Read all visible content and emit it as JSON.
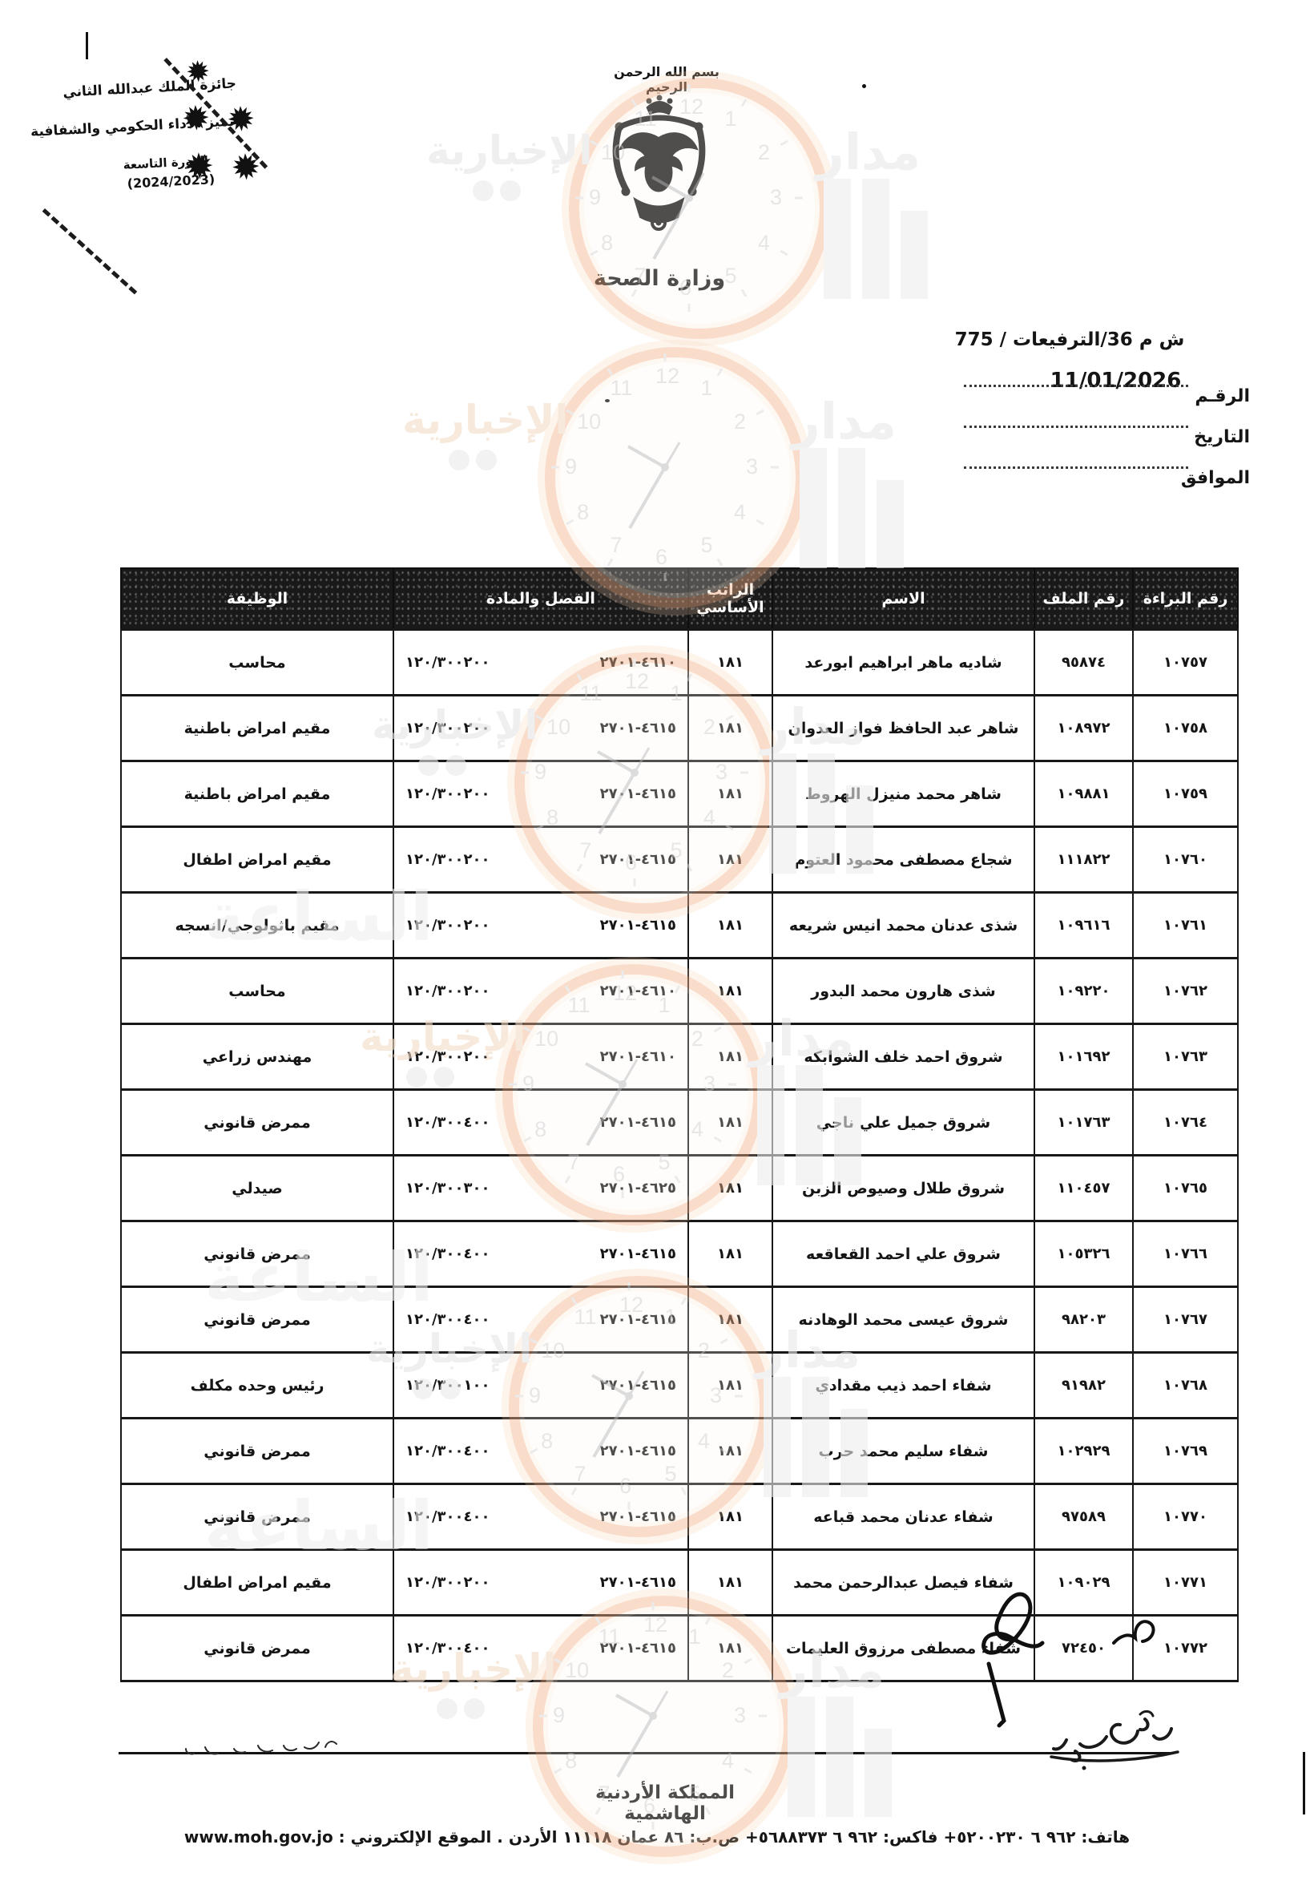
{
  "stamp": {
    "line1": "جائزة الملك عبدالله الثاني",
    "line2": "تميز الأداء الحكومي والشفافية",
    "line3": "الدورة التاسعة",
    "line4": "(2024/2023)",
    "star_glyph": "✹"
  },
  "letterhead": {
    "basmala": "بسم الله الرحمن الرحيم",
    "ministry": "وزارة الصحة"
  },
  "reference": {
    "ref_line": "ش م 36/الترفيعات / 775",
    "number_label": "الرقـم",
    "number_value": "11/01/2026",
    "date_label": "التاريخ",
    "agreed_label": "الموافق"
  },
  "table": {
    "headers": [
      "رقم البراءة",
      "رقم الملف",
      "الاسم",
      "الراتب الأساسي",
      "الفصل والمادة",
      "الوظيفة"
    ],
    "rows": [
      {
        "decree": "١٠٧٥٧",
        "file": "٩٥٨٧٤",
        "name": "شاديه ماهر ابراهيم ابورعد",
        "salary": "١٨١",
        "chapter": "١٢٠/٣٠٠٢٠٠ ٤٦١٠-٢٧٠١",
        "job": "محاسب"
      },
      {
        "decree": "١٠٧٥٨",
        "file": "١٠٨٩٧٢",
        "name": "شاهر عبد الحافظ فواز العدوان",
        "salary": "١٨١",
        "chapter": "١٢٠/٣٠٠٢٠٠ ٤٦١٥-٢٧٠١",
        "job": "مقيم امراض باطنية"
      },
      {
        "decree": "١٠٧٥٩",
        "file": "١٠٩٨٨١",
        "name": "شاهر محمد منيزل الهروط",
        "salary": "١٨١",
        "chapter": "١٢٠/٣٠٠٢٠٠ ٤٦١٥-٢٧٠١",
        "job": "مقيم امراض باطنية"
      },
      {
        "decree": "١٠٧٦٠",
        "file": "١١١٨٢٢",
        "name": "شجاع مصطفى محمود العتوم",
        "salary": "١٨١",
        "chapter": "١٢٠/٣٠٠٢٠٠ ٤٦١٥-٢٧٠١",
        "job": "مقيم امراض اطفال"
      },
      {
        "decree": "١٠٧٦١",
        "file": "١٠٩٦١٦",
        "name": "شذى عدنان محمد انيس شريعه",
        "salary": "١٨١",
        "chapter": "١٢٠/٣٠٠٢٠٠ ٤٦١٥-٢٧٠١",
        "job": "مقيم باثولوجي/انسجه"
      },
      {
        "decree": "١٠٧٦٢",
        "file": "١٠٩٢٢٠",
        "name": "شذى هارون محمد البدور",
        "salary": "١٨١",
        "chapter": "١٢٠/٣٠٠٢٠٠ ٤٦١٠-٢٧٠١",
        "job": "محاسب"
      },
      {
        "decree": "١٠٧٦٣",
        "file": "١٠١٦٩٢",
        "name": "شروق احمد خلف الشوابكه",
        "salary": "١٨١",
        "chapter": "١٢٠/٣٠٠٢٠٠ ٤٦١٠-٢٧٠١",
        "job": "مهندس زراعي"
      },
      {
        "decree": "١٠٧٦٤",
        "file": "١٠١٧٦٣",
        "name": "شروق جميل علي ناجي",
        "salary": "١٨١",
        "chapter": "١٢٠/٣٠٠٤٠٠ ٤٦١٥-٢٧٠١",
        "job": "ممرض قانوني"
      },
      {
        "decree": "١٠٧٦٥",
        "file": "١١٠٤٥٧",
        "name": "شروق طلال وصيوص الزبن",
        "salary": "١٨١",
        "chapter": "١٢٠/٣٠٠٣٠٠ ٤٦٢٥-٢٧٠١",
        "job": "صيدلي"
      },
      {
        "decree": "١٠٧٦٦",
        "file": "١٠٥٣٢٦",
        "name": "شروق علي احمد القعاقعه",
        "salary": "١٨١",
        "chapter": "١٢٠/٣٠٠٤٠٠ ٤٦١٥-٢٧٠١",
        "job": "ممرض قانوني"
      },
      {
        "decree": "١٠٧٦٧",
        "file": "٩٨٢٠٣",
        "name": "شروق عيسى محمد الوهادنه",
        "salary": "١٨١",
        "chapter": "١٢٠/٣٠٠٤٠٠ ٤٦١٥-٢٧٠١",
        "job": "ممرض قانوني"
      },
      {
        "decree": "١٠٧٦٨",
        "file": "٩١٩٨٢",
        "name": "شفاء احمد ذيب مقدادي",
        "salary": "١٨١",
        "chapter": "١٢٠/٣٠٠١٠٠ ٤٦١٥-٢٧٠١",
        "job": "رئيس وحده مكلف"
      },
      {
        "decree": "١٠٧٦٩",
        "file": "١٠٢٩٢٩",
        "name": "شفاء سليم محمد حرب",
        "salary": "١٨١",
        "chapter": "١٢٠/٣٠٠٤٠٠ ٤٦١٥-٢٧٠١",
        "job": "ممرض قانوني"
      },
      {
        "decree": "١٠٧٧٠",
        "file": "٩٧٥٨٩",
        "name": "شفاء عدنان محمد قباعه",
        "salary": "١٨١",
        "chapter": "١٢٠/٣٠٠٤٠٠ ٤٦١٥-٢٧٠١",
        "job": "ممرض قانوني"
      },
      {
        "decree": "١٠٧٧١",
        "file": "١٠٩٠٢٩",
        "name": "شفاء فيصل عبدالرحمن محمد",
        "salary": "١٨١",
        "chapter": "١٢٠/٣٠٠٢٠٠ ٤٦١٥-٢٧٠١",
        "job": "مقيم امراض اطفال"
      },
      {
        "decree": "١٠٧٧٢",
        "file": "٧٢٤٥٠",
        "name": "شفاء مصطفى مرزوق العليمات",
        "salary": "١٨١",
        "chapter": "١٢٠/٣٠٠٤٠٠ ٤٦١٥-٢٧٠١",
        "job": "ممرض قانوني"
      }
    ]
  },
  "footer": {
    "kingdom": "المملكة الأردنية الهاشمية",
    "phone_label": "هاتف:",
    "phone": "+٩٦٢ ٦ ٥٢٠٠٢٣٠",
    "fax_label": "فاكس:",
    "fax": "+٩٦٢ ٦ ٥٦٨٨٣٧٣",
    "pobox": "ص.ب: ٨٦ عمان ١١١١٨ الأردن .",
    "website_label": "الموقع الإلكتروني :",
    "website": "www.moh.gov.jo"
  },
  "watermark": {
    "brand_word": "مدار",
    "brand_word2": "الساعة",
    "news_word": "الإخبارية",
    "accent_color": "#ee9865",
    "gray_color": "#e9e9e9",
    "clock_numbers": [
      "1",
      "2",
      "3",
      "4",
      "5",
      "6",
      "7",
      "8",
      "9",
      "10",
      "11",
      "12"
    ]
  }
}
